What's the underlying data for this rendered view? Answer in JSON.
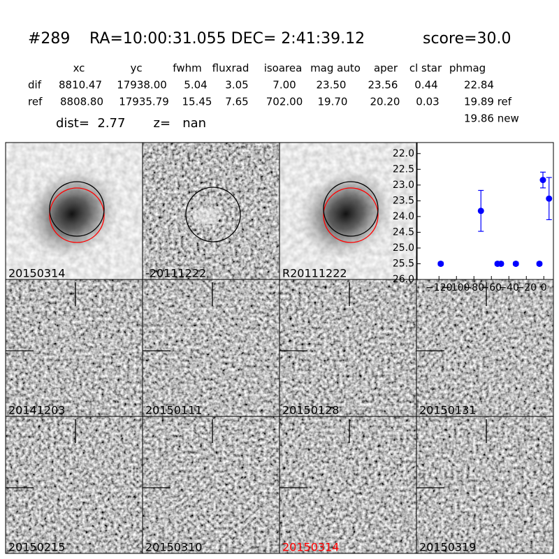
{
  "header": {
    "id": "#289",
    "coords": "RA=10:00:31.055 DEC= 2:41:39.12",
    "score": "score=30.0"
  },
  "table": {
    "columns": [
      "xc",
      "yc",
      "fwhm",
      "fluxrad",
      "isoarea",
      "mag auto",
      "aper",
      "cl star",
      "phmag"
    ],
    "rows": [
      {
        "label": "dif",
        "cells": [
          "8810.47",
          "17938.00",
          "5.04",
          "3.05",
          "7.00",
          "23.50",
          "23.56",
          "0.44",
          "22.84"
        ]
      },
      {
        "label": "ref",
        "cells": [
          "8808.80",
          "17935.79",
          "15.45",
          "7.65",
          "702.00",
          "19.70",
          "20.20",
          "0.03",
          "19.89 ref"
        ]
      }
    ],
    "extra": "19.86 new"
  },
  "dist": "dist=  2.77       z=   nan",
  "stamps": [
    "20150314",
    "-20111222",
    "R20111222",
    "20141203",
    "20150111",
    "20150128",
    "20150131",
    "20150215",
    "20150310",
    "20150314",
    "20150319"
  ],
  "chart_data": {
    "type": "errorbar",
    "color": "#0000ff",
    "x": [
      -118,
      -72,
      -53,
      -49,
      -32,
      -5,
      -1,
      6
    ],
    "values": [
      25.5,
      23.82,
      25.5,
      25.5,
      25.5,
      25.5,
      22.84,
      23.43
    ],
    "errors": [
      0.05,
      0.65,
      0.05,
      0.05,
      0.05,
      0.05,
      0.25,
      0.67
    ],
    "xlim": [
      -145,
      11
    ],
    "ylim": [
      26.0,
      21.65
    ],
    "xticks": [
      {
        "value": -120,
        "label": "−120"
      },
      {
        "value": -100,
        "label": "−100"
      },
      {
        "value": -80,
        "label": "−80"
      },
      {
        "value": -60,
        "label": "−60"
      },
      {
        "value": -40,
        "label": "−40"
      },
      {
        "value": -20,
        "label": "−20"
      },
      0
    ],
    "yticks": [
      {
        "value": 22,
        "label": "22.0"
      },
      22.5,
      {
        "value": 23,
        "label": "23.0"
      },
      23.5,
      {
        "value": 24,
        "label": "24.0"
      },
      24.5,
      {
        "value": 25,
        "label": "25.0"
      },
      25.5,
      {
        "value": 26,
        "label": "26.0"
      }
    ]
  }
}
